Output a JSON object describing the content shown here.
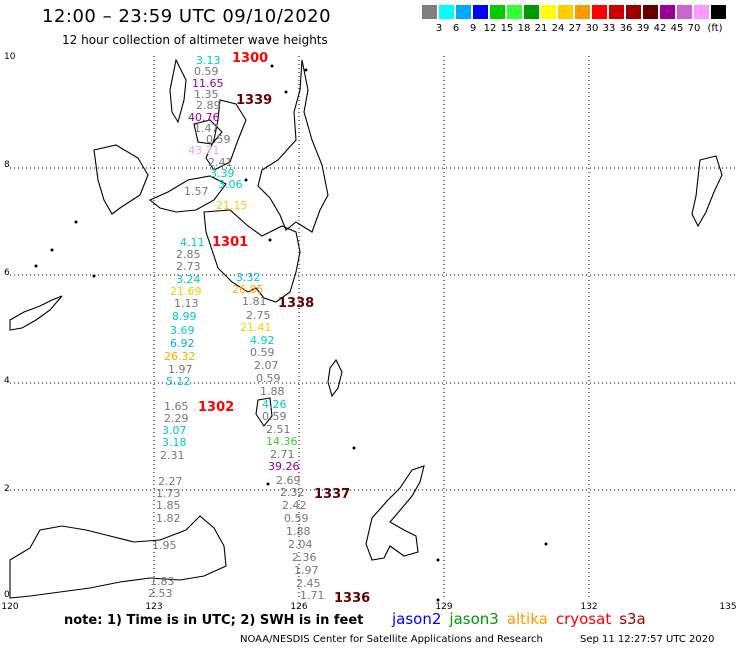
{
  "header": {
    "title": "12:00 – 23:59 UTC 09/10/2020",
    "subtitle": "12 hour collection of altimeter wave heights"
  },
  "scale": {
    "unit": "(ft)",
    "bins": [
      {
        "label": "",
        "color": "#808080"
      },
      {
        "label": "3",
        "color": "#00ffff"
      },
      {
        "label": "6",
        "color": "#00aaff"
      },
      {
        "label": "9",
        "color": "#0000ff"
      },
      {
        "label": "12",
        "color": "#00cc00"
      },
      {
        "label": "15",
        "color": "#33ff33"
      },
      {
        "label": "18",
        "color": "#009900"
      },
      {
        "label": "21",
        "color": "#ffff00"
      },
      {
        "label": "24",
        "color": "#ffcc00"
      },
      {
        "label": "27",
        "color": "#ff9900"
      },
      {
        "label": "30",
        "color": "#ff0000"
      },
      {
        "label": "33",
        "color": "#cc0000"
      },
      {
        "label": "36",
        "color": "#990000"
      },
      {
        "label": "39",
        "color": "#660000"
      },
      {
        "label": "42",
        "color": "#990099"
      },
      {
        "label": "45",
        "color": "#cc66cc"
      },
      {
        "label": "70",
        "color": "#ff99ff"
      },
      {
        "label": "",
        "color": "#000000"
      }
    ]
  },
  "axes": {
    "lat_labels": [
      "10",
      "8",
      "6",
      "4",
      "2",
      "0"
    ],
    "lon_labels": [
      "120",
      "123",
      "126",
      "129",
      "132",
      "135"
    ]
  },
  "passes": [
    {
      "label": "1300",
      "color": "#ff0000"
    },
    {
      "label": "1339",
      "color": "#660000"
    },
    {
      "label": "1301",
      "color": "#ff0000"
    },
    {
      "label": "1338",
      "color": "#660000"
    },
    {
      "label": "1302",
      "color": "#ff0000"
    },
    {
      "label": "1337",
      "color": "#660000"
    },
    {
      "label": "1336",
      "color": "#660000"
    }
  ],
  "track_a": [
    {
      "v": "3.13",
      "c": "#00cccc"
    },
    {
      "v": "0.59",
      "c": "#777777"
    },
    {
      "v": "11.65",
      "c": "#990099"
    },
    {
      "v": "1.35",
      "c": "#777777"
    },
    {
      "v": "2.89",
      "c": "#777777"
    },
    {
      "v": "40.76",
      "c": "#990099"
    },
    {
      "v": "1.47",
      "c": "#777777"
    },
    {
      "v": "0.59",
      "c": "#777777"
    },
    {
      "v": "43.71",
      "c": "#ff99ff"
    },
    {
      "v": "2.41",
      "c": "#777777"
    },
    {
      "v": "3.39",
      "c": "#00cccc"
    },
    {
      "v": "3.06",
      "c": "#00cccc"
    }
  ],
  "track_b": [
    {
      "v": "1.57",
      "c": "#777777"
    },
    {
      "v": "21.15",
      "c": "#ffcc00"
    },
    {
      "v": "4.11",
      "c": "#00cccc"
    },
    {
      "v": "2.85",
      "c": "#777777"
    },
    {
      "v": "2.73",
      "c": "#777777"
    },
    {
      "v": "3.24",
      "c": "#00cccc"
    },
    {
      "v": "21.69",
      "c": "#ffcc00"
    },
    {
      "v": "1.13",
      "c": "#777777"
    },
    {
      "v": "8.99",
      "c": "#00cccc"
    },
    {
      "v": "3.69",
      "c": "#00cccc"
    },
    {
      "v": "6.92",
      "c": "#00aaff"
    },
    {
      "v": "26.32",
      "c": "#ffaa00"
    },
    {
      "v": "1.97",
      "c": "#777777"
    },
    {
      "v": "5.12",
      "c": "#00cccc"
    },
    {
      "v": "1.65",
      "c": "#777777"
    },
    {
      "v": "2.29",
      "c": "#777777"
    },
    {
      "v": "3.07",
      "c": "#00cccc"
    },
    {
      "v": "3.18",
      "c": "#00cccc"
    },
    {
      "v": "2.31",
      "c": "#777777"
    },
    {
      "v": "2.27",
      "c": "#777777"
    },
    {
      "v": "1.73",
      "c": "#777777"
    },
    {
      "v": "1.85",
      "c": "#777777"
    },
    {
      "v": "1.82",
      "c": "#777777"
    },
    {
      "v": "1.95",
      "c": "#777777"
    },
    {
      "v": "1.83",
      "c": "#777777"
    },
    {
      "v": "2.53",
      "c": "#777777"
    }
  ],
  "track_c": [
    {
      "v": "3.32",
      "c": "#00cccc"
    },
    {
      "v": "26.85",
      "c": "#ffaa00"
    },
    {
      "v": "1.81",
      "c": "#777777"
    },
    {
      "v": "2.75",
      "c": "#777777"
    },
    {
      "v": "21.41",
      "c": "#ffcc00"
    },
    {
      "v": "4.92",
      "c": "#00cccc"
    },
    {
      "v": "0.59",
      "c": "#777777"
    },
    {
      "v": "2.07",
      "c": "#777777"
    },
    {
      "v": "0.59",
      "c": "#777777"
    },
    {
      "v": "1.88",
      "c": "#777777"
    },
    {
      "v": "4.26",
      "c": "#00cccc"
    },
    {
      "v": "0.59",
      "c": "#777777"
    },
    {
      "v": "2.51",
      "c": "#777777"
    },
    {
      "v": "14.36",
      "c": "#33cc33"
    },
    {
      "v": "2.71",
      "c": "#777777"
    },
    {
      "v": "39.26",
      "c": "#990099"
    },
    {
      "v": "2.69",
      "c": "#777777"
    },
    {
      "v": "2.32",
      "c": "#777777"
    },
    {
      "v": "2.42",
      "c": "#777777"
    },
    {
      "v": "0.59",
      "c": "#777777"
    },
    {
      "v": "1.88",
      "c": "#777777"
    },
    {
      "v": "2.04",
      "c": "#777777"
    },
    {
      "v": "2.36",
      "c": "#777777"
    },
    {
      "v": "1.97",
      "c": "#777777"
    },
    {
      "v": "2.45",
      "c": "#777777"
    },
    {
      "v": "1.71",
      "c": "#777777"
    }
  ],
  "footer": {
    "note": "note:  1) Time is in UTC;  2) SWH is in feet",
    "satellites": [
      {
        "name": "jason2",
        "color": "#0000ff"
      },
      {
        "name": "jason3",
        "color": "#009900"
      },
      {
        "name": "altika",
        "color": "#ff9900"
      },
      {
        "name": "cryosat",
        "color": "#ff0000"
      },
      {
        "name": "s3a",
        "color": "#990000"
      }
    ],
    "credit": "NOAA/NESDIS Center for Satellite Applications and Research",
    "generated": "Sep 11 12:27:57 UTC 2020"
  }
}
